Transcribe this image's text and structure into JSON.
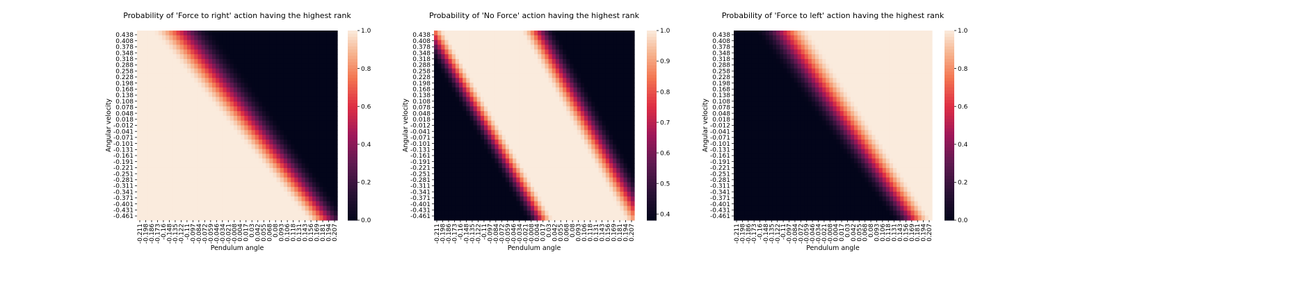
{
  "chart_data": [
    {
      "type": "heatmap",
      "title": "Probability of 'Force to right' action having the highest rank",
      "xlabel": "Pendulum angle",
      "ylabel": "Angular velocity",
      "x_ticks": [
        "-0.211",
        "-0.198",
        "-0.186",
        "-0.173",
        "-0.16",
        "-0.148",
        "-0.135",
        "-0.122",
        "-0.11",
        "-0.097",
        "-0.084",
        "-0.072",
        "-0.059",
        "-0.046",
        "-0.034",
        "-0.021",
        "-0.008",
        "0.004",
        "0.017",
        "0.03",
        "0.042",
        "0.055",
        "0.068",
        "0.08",
        "0.093",
        "0.106",
        "0.118",
        "0.131",
        "0.143",
        "0.156",
        "0.169",
        "0.181",
        "0.194",
        "0.207"
      ],
      "y_ticks": [
        "0.438",
        "0.408",
        "0.378",
        "0.348",
        "0.318",
        "0.288",
        "0.258",
        "0.228",
        "0.198",
        "0.168",
        "0.138",
        "0.108",
        "0.078",
        "0.048",
        "0.018",
        "-0.012",
        "-0.041",
        "-0.071",
        "-0.101",
        "-0.131",
        "-0.161",
        "-0.191",
        "-0.221",
        "-0.251",
        "-0.281",
        "-0.311",
        "-0.341",
        "-0.371",
        "-0.401",
        "-0.431",
        "-0.461"
      ],
      "colorbar": {
        "min": 0.0,
        "max": 1.0,
        "ticks": [
          "0.0",
          "0.2",
          "0.4",
          "0.6",
          "0.8",
          "1.0"
        ]
      },
      "pattern": "high (≈1.0) in lower-left region, low (≈0.0) in upper-right; diagonal transition band"
    },
    {
      "type": "heatmap",
      "title": "Probability of 'No Force' action having the highest rank",
      "xlabel": "Pendulum angle",
      "ylabel": "Angular velocity",
      "x_ticks": [
        "-0.211",
        "-0.198",
        "-0.186",
        "-0.173",
        "-0.16",
        "-0.148",
        "-0.135",
        "-0.122",
        "-0.11",
        "-0.097",
        "-0.084",
        "-0.072",
        "-0.059",
        "-0.046",
        "-0.034",
        "-0.021",
        "-0.008",
        "0.004",
        "0.017",
        "0.03",
        "0.042",
        "0.055",
        "0.068",
        "0.08",
        "0.093",
        "0.106",
        "0.118",
        "0.131",
        "0.143",
        "0.156",
        "0.169",
        "0.181",
        "0.194",
        "0.207"
      ],
      "y_ticks": [
        "0.438",
        "0.408",
        "0.378",
        "0.348",
        "0.318",
        "0.288",
        "0.258",
        "0.228",
        "0.198",
        "0.168",
        "0.138",
        "0.108",
        "0.078",
        "0.048",
        "0.018",
        "-0.012",
        "-0.041",
        "-0.071",
        "-0.101",
        "-0.131",
        "-0.161",
        "-0.191",
        "-0.221",
        "-0.251",
        "-0.281",
        "-0.311",
        "-0.341",
        "-0.371",
        "-0.401",
        "-0.431",
        "-0.461"
      ],
      "colorbar": {
        "min": 0.38,
        "max": 1.0,
        "ticks": [
          "0.4",
          "0.5",
          "0.6",
          "0.7",
          "0.8",
          "0.9",
          "1.0"
        ]
      },
      "pattern": "high (≈1.0) along central diagonal band; lower (≈0.4–0.6) in lower-left and upper-right corners"
    },
    {
      "type": "heatmap",
      "title": "Probability of 'Force to left' action having the highest rank",
      "xlabel": "Pendulum angle",
      "ylabel": "Angular velocity",
      "x_ticks": [
        "-0.211",
        "-0.198",
        "-0.186",
        "-0.173",
        "-0.16",
        "-0.148",
        "-0.135",
        "-0.122",
        "-0.11",
        "-0.097",
        "-0.084",
        "-0.072",
        "-0.059",
        "-0.046",
        "-0.034",
        "-0.021",
        "-0.008",
        "0.004",
        "0.017",
        "0.03",
        "0.042",
        "0.055",
        "0.068",
        "0.08",
        "0.093",
        "0.106",
        "0.118",
        "0.131",
        "0.143",
        "0.156",
        "0.169",
        "0.181",
        "0.194",
        "0.207"
      ],
      "y_ticks": [
        "0.438",
        "0.408",
        "0.378",
        "0.348",
        "0.318",
        "0.288",
        "0.258",
        "0.228",
        "0.198",
        "0.168",
        "0.138",
        "0.108",
        "0.078",
        "0.048",
        "0.018",
        "-0.012",
        "-0.041",
        "-0.071",
        "-0.101",
        "-0.131",
        "-0.161",
        "-0.191",
        "-0.221",
        "-0.251",
        "-0.281",
        "-0.311",
        "-0.341",
        "-0.371",
        "-0.401",
        "-0.431",
        "-0.461"
      ],
      "colorbar": {
        "min": 0.0,
        "max": 1.0,
        "ticks": [
          "0.0",
          "0.2",
          "0.4",
          "0.6",
          "0.8",
          "1.0"
        ]
      },
      "pattern": "low (≈0.0) in lower-left region, high (≈1.0) in upper-right; diagonal transition band"
    }
  ]
}
